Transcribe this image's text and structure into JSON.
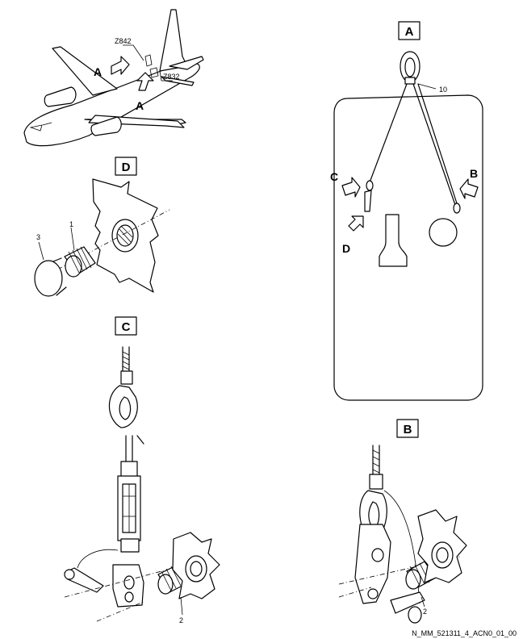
{
  "aircraft": {
    "view_a_left": "A",
    "view_a_bottom": "A",
    "zone_z842": "Z842",
    "zone_z832": "Z832"
  },
  "view_a": {
    "title": "A",
    "item_10": "10",
    "arrow_c": "C",
    "arrow_b": "B",
    "arrow_d": "D"
  },
  "view_d": {
    "title": "D",
    "item_3": "3",
    "item_1": "1"
  },
  "view_c": {
    "title": "C",
    "item_2": "2"
  },
  "view_b": {
    "title": "B",
    "item_2": "2"
  },
  "reference": "N_MM_521311_4_ACN0_01_00"
}
